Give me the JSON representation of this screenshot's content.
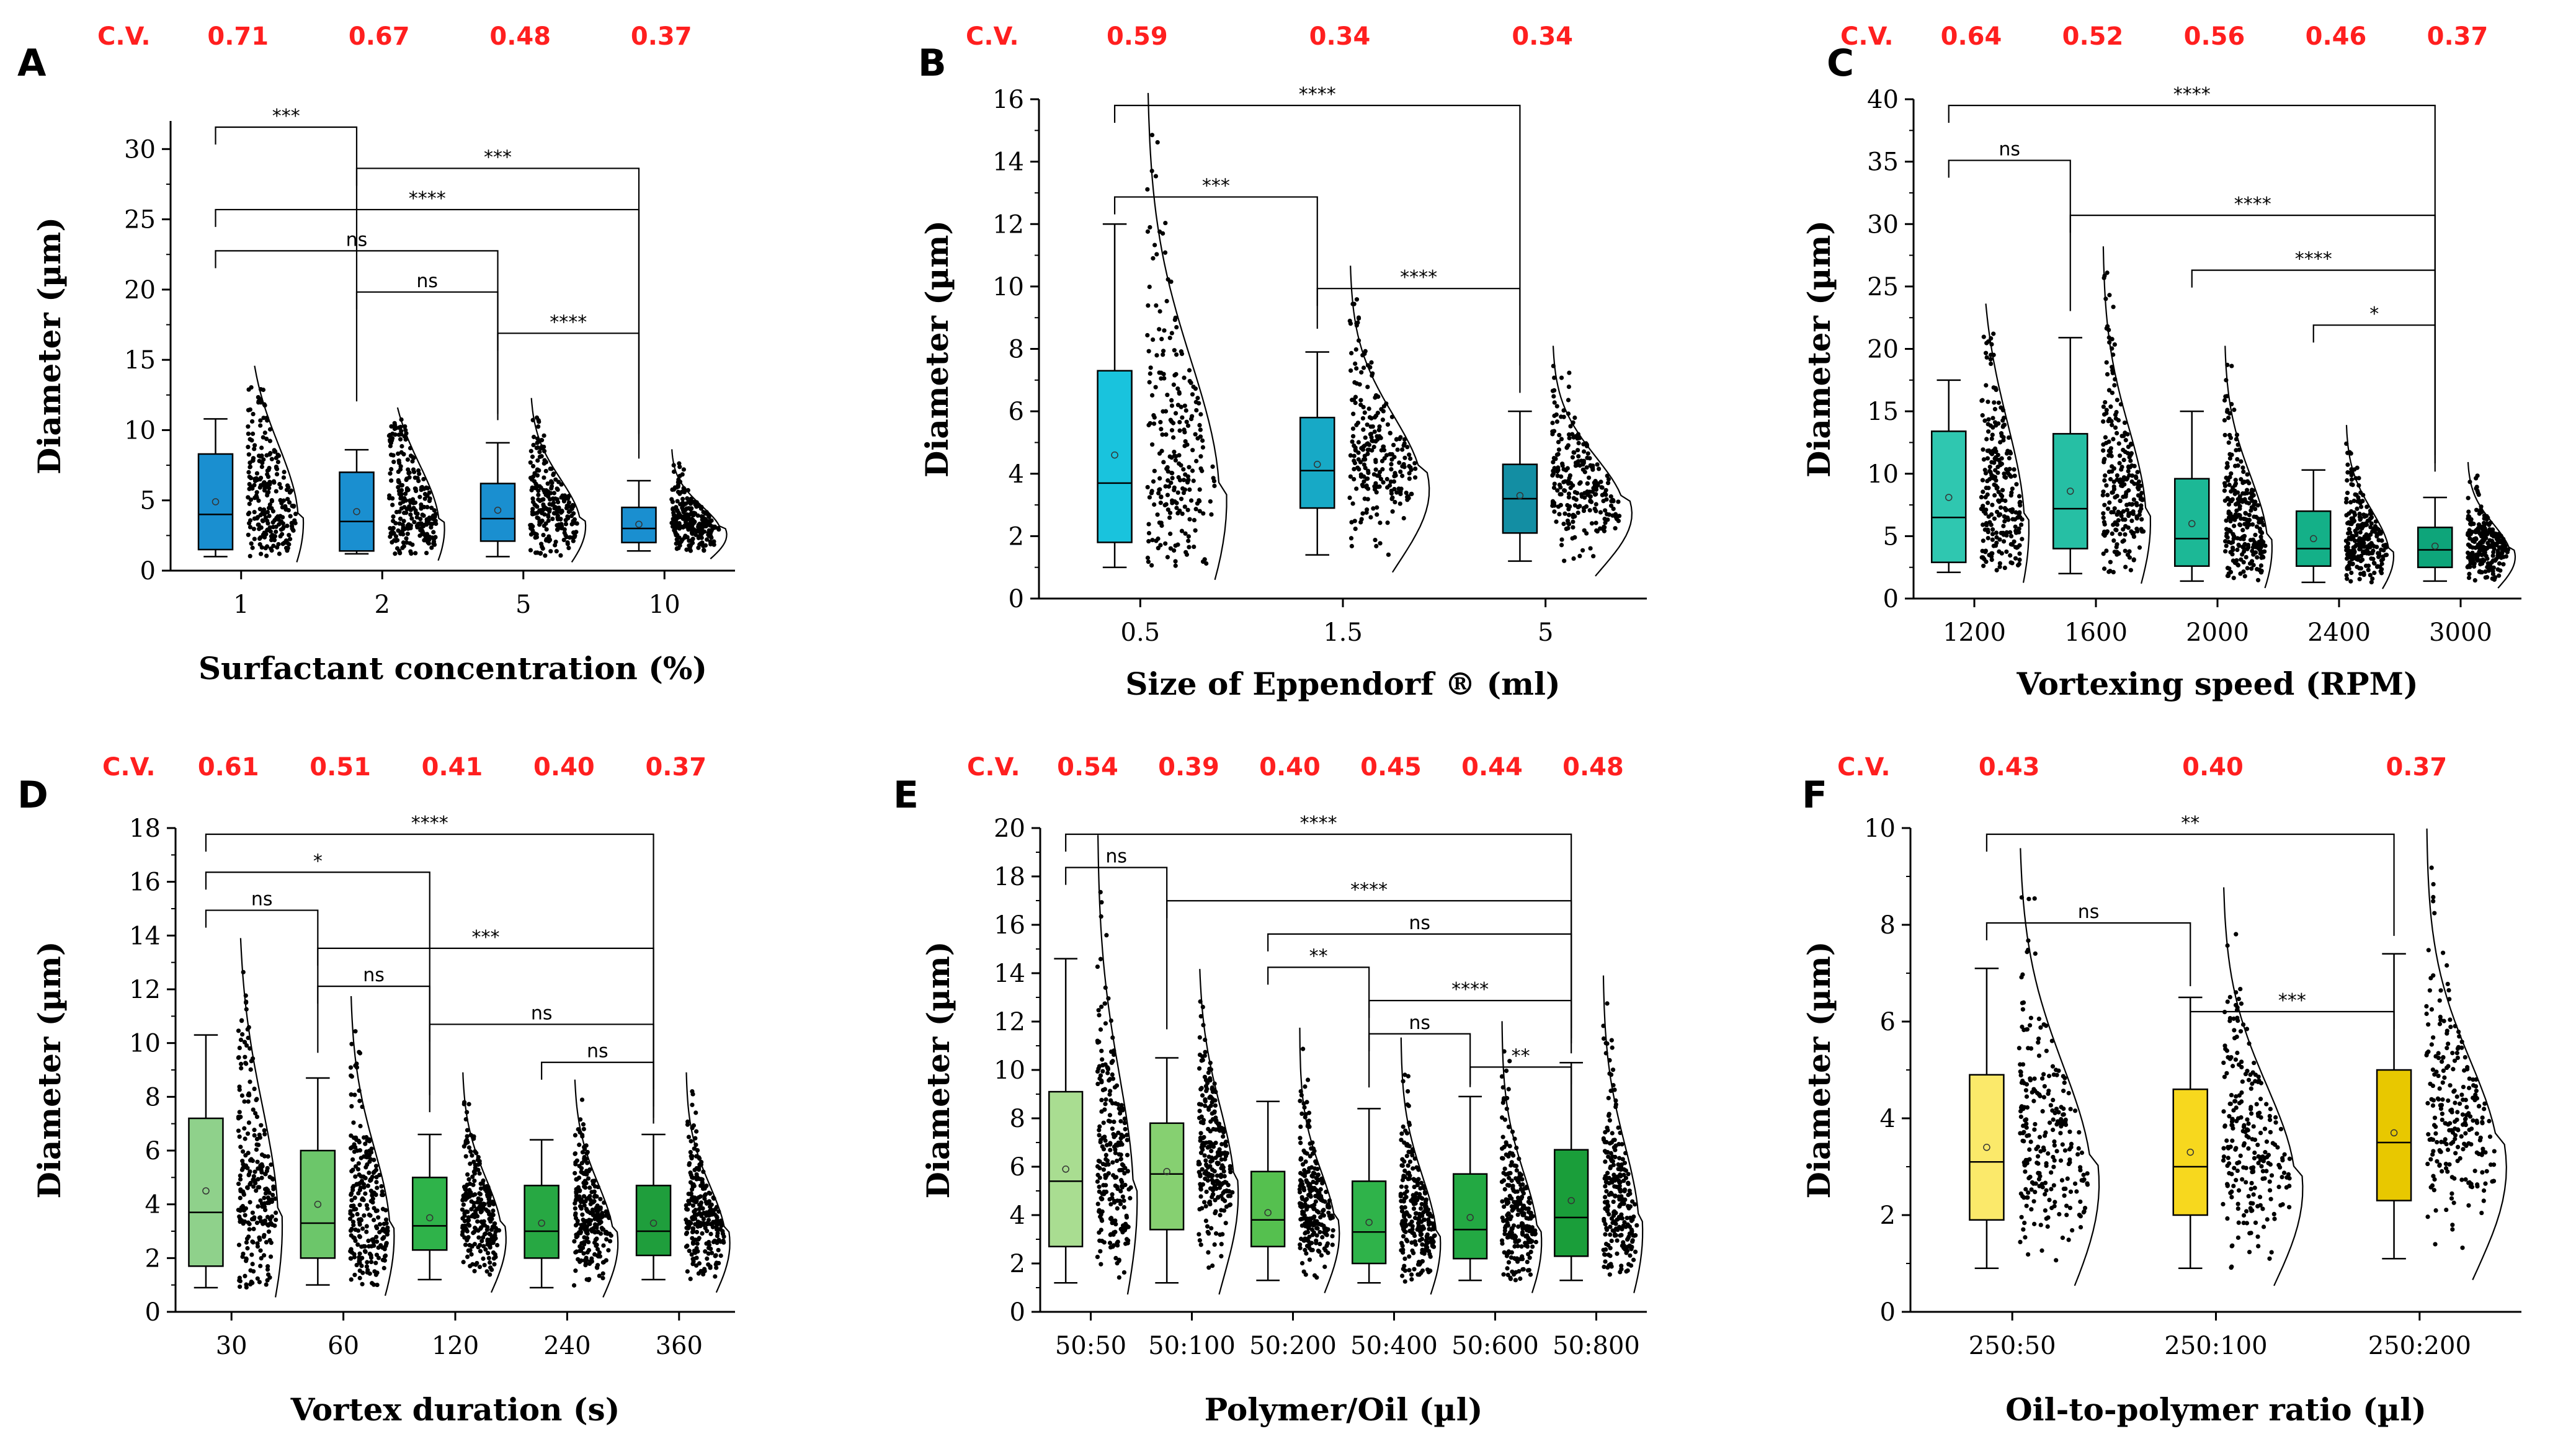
{
  "chart_data": [
    {
      "type": "box",
      "panel": "A",
      "xlabel": "Surfactant concentration (%)",
      "ylabel": "Diameter (µm)",
      "ylim": [
        0,
        32
      ],
      "yticks": [
        0,
        5,
        10,
        15,
        20,
        25,
        30
      ],
      "cv_label": "C.V.",
      "cv": [
        "0.71",
        "0.67",
        "0.48",
        "0.37"
      ],
      "categories": [
        "1",
        "2",
        "5",
        "10"
      ],
      "box_color": "#1a8fd0",
      "colors": [
        "#1a8fd0",
        "#1a8fd0",
        "#1a8fd0",
        "#1a8fd0"
      ],
      "box_stats": [
        {
          "whisker_low": 1.0,
          "q1": 1.5,
          "median": 4.0,
          "mean": 4.9,
          "q3": 8.3,
          "whisker_high": 10.8
        },
        {
          "whisker_low": 1.2,
          "q1": 1.4,
          "median": 3.5,
          "mean": 4.2,
          "q3": 7.0,
          "whisker_high": 8.6
        },
        {
          "whisker_low": 1.0,
          "q1": 2.1,
          "median": 3.7,
          "mean": 4.3,
          "q3": 6.2,
          "whisker_high": 9.1
        },
        {
          "whisker_low": 1.4,
          "q1": 2.0,
          "median": 3.0,
          "mean": 3.3,
          "q3": 4.5,
          "whisker_high": 6.4
        }
      ],
      "significance": [
        {
          "from": 0,
          "to": 1,
          "label": "***"
        },
        {
          "from": 1,
          "to": 3,
          "label": "***"
        },
        {
          "from": 0,
          "to": 3,
          "label": "****"
        },
        {
          "from": 0,
          "to": 2,
          "label": "ns"
        },
        {
          "from": 1,
          "to": 2,
          "label": "ns"
        },
        {
          "from": 2,
          "to": 3,
          "label": "****"
        }
      ]
    },
    {
      "type": "box",
      "panel": "B",
      "xlabel": "Size of Eppendorf ® (ml)",
      "ylabel": "Diameter (µm)",
      "ylim": [
        0,
        16
      ],
      "yticks": [
        0,
        2,
        4,
        6,
        8,
        10,
        12,
        14,
        16
      ],
      "cv_label": "C.V.",
      "cv": [
        "0.59",
        "0.34",
        "0.34"
      ],
      "categories": [
        "0.5",
        "1.5",
        "5"
      ],
      "colors": [
        "#19c3dd",
        "#17a9c6",
        "#138ea3"
      ],
      "box_stats": [
        {
          "whisker_low": 1.0,
          "q1": 1.8,
          "median": 3.7,
          "mean": 4.6,
          "q3": 7.3,
          "whisker_high": 12.0
        },
        {
          "whisker_low": 1.4,
          "q1": 2.9,
          "median": 4.1,
          "mean": 4.3,
          "q3": 5.8,
          "whisker_high": 7.9
        },
        {
          "whisker_low": 1.2,
          "q1": 2.1,
          "median": 3.2,
          "mean": 3.3,
          "q3": 4.3,
          "whisker_high": 6.0
        }
      ],
      "significance": [
        {
          "from": 0,
          "to": 2,
          "label": "****"
        },
        {
          "from": 0,
          "to": 1,
          "label": "***"
        },
        {
          "from": 1,
          "to": 2,
          "label": "****"
        }
      ]
    },
    {
      "type": "box",
      "panel": "C",
      "xlabel": "Vortexing speed (RPM)",
      "ylabel": "Diameter (µm)",
      "ylim": [
        0,
        40
      ],
      "yticks": [
        0,
        5,
        10,
        15,
        20,
        25,
        30,
        35,
        40
      ],
      "cv_label": "C.V.",
      "cv": [
        "0.64",
        "0.52",
        "0.56",
        "0.46",
        "0.37"
      ],
      "categories": [
        "1200",
        "1600",
        "2000",
        "2400",
        "3000"
      ],
      "colors": [
        "#2fc7b0",
        "#26bfa4",
        "#1cb896",
        "#14b088",
        "#0ea57a"
      ],
      "box_stats": [
        {
          "whisker_low": 2.1,
          "q1": 2.9,
          "median": 6.5,
          "mean": 8.1,
          "q3": 13.4,
          "whisker_high": 17.5
        },
        {
          "whisker_low": 2.0,
          "q1": 4.0,
          "median": 7.2,
          "mean": 8.6,
          "q3": 13.2,
          "whisker_high": 20.9
        },
        {
          "whisker_low": 1.4,
          "q1": 2.6,
          "median": 4.8,
          "mean": 6.0,
          "q3": 9.6,
          "whisker_high": 15.0
        },
        {
          "whisker_low": 1.3,
          "q1": 2.6,
          "median": 4.0,
          "mean": 4.8,
          "q3": 7.0,
          "whisker_high": 10.3
        },
        {
          "whisker_low": 1.4,
          "q1": 2.5,
          "median": 3.9,
          "mean": 4.2,
          "q3": 5.7,
          "whisker_high": 8.1
        }
      ],
      "significance": [
        {
          "from": 0,
          "to": 4,
          "label": "****"
        },
        {
          "from": 0,
          "to": 1,
          "label": "ns"
        },
        {
          "from": 1,
          "to": 4,
          "label": "****"
        },
        {
          "from": 2,
          "to": 4,
          "label": "****"
        },
        {
          "from": 3,
          "to": 4,
          "label": "*"
        }
      ]
    },
    {
      "type": "box",
      "panel": "D",
      "xlabel": "Vortex duration (s)",
      "ylabel": "Diameter (µm)",
      "ylim": [
        0,
        18
      ],
      "yticks": [
        0,
        2,
        4,
        6,
        8,
        10,
        12,
        14,
        16,
        18
      ],
      "cv_label": "C.V.",
      "cv": [
        "0.61",
        "0.51",
        "0.41",
        "0.40",
        "0.37"
      ],
      "categories": [
        "30",
        "60",
        "120",
        "240",
        "360"
      ],
      "colors": [
        "#8fd18b",
        "#6cc66a",
        "#2fb34a",
        "#27a843",
        "#1f9e3c"
      ],
      "box_stats": [
        {
          "whisker_low": 0.9,
          "q1": 1.7,
          "median": 3.7,
          "mean": 4.5,
          "q3": 7.2,
          "whisker_high": 10.3
        },
        {
          "whisker_low": 1.0,
          "q1": 2.0,
          "median": 3.3,
          "mean": 4.0,
          "q3": 6.0,
          "whisker_high": 8.7
        },
        {
          "whisker_low": 1.2,
          "q1": 2.3,
          "median": 3.2,
          "mean": 3.5,
          "q3": 5.0,
          "whisker_high": 6.6
        },
        {
          "whisker_low": 0.9,
          "q1": 2.0,
          "median": 3.0,
          "mean": 3.3,
          "q3": 4.7,
          "whisker_high": 6.4
        },
        {
          "whisker_low": 1.2,
          "q1": 2.1,
          "median": 3.0,
          "mean": 3.3,
          "q3": 4.7,
          "whisker_high": 6.6
        }
      ],
      "significance": [
        {
          "from": 0,
          "to": 4,
          "label": "****"
        },
        {
          "from": 0,
          "to": 2,
          "label": "*"
        },
        {
          "from": 0,
          "to": 1,
          "label": "ns"
        },
        {
          "from": 1,
          "to": 4,
          "label": "***"
        },
        {
          "from": 1,
          "to": 2,
          "label": "ns"
        },
        {
          "from": 2,
          "to": 4,
          "label": "ns"
        },
        {
          "from": 3,
          "to": 4,
          "label": "ns"
        }
      ]
    },
    {
      "type": "box",
      "panel": "E",
      "xlabel": "Polymer/Oil (µl)",
      "ylabel": "Diameter (µm)",
      "ylim": [
        0,
        20
      ],
      "yticks": [
        0,
        2,
        4,
        6,
        8,
        10,
        12,
        14,
        16,
        18,
        20
      ],
      "cv_label": "C.V.",
      "cv": [
        "0.54",
        "0.39",
        "0.40",
        "0.45",
        "0.44",
        "0.48"
      ],
      "categories": [
        "50:50",
        "50:100",
        "50:200",
        "50:400",
        "50:600",
        "50:800"
      ],
      "colors": [
        "#a9dd91",
        "#86d071",
        "#55c04f",
        "#2fb34a",
        "#23a943",
        "#1a9e3a"
      ],
      "box_stats": [
        {
          "whisker_low": 1.2,
          "q1": 2.7,
          "median": 5.4,
          "mean": 5.9,
          "q3": 9.1,
          "whisker_high": 14.6
        },
        {
          "whisker_low": 1.2,
          "q1": 3.4,
          "median": 5.7,
          "mean": 5.8,
          "q3": 7.8,
          "whisker_high": 10.5
        },
        {
          "whisker_low": 1.3,
          "q1": 2.7,
          "median": 3.8,
          "mean": 4.1,
          "q3": 5.8,
          "whisker_high": 8.7
        },
        {
          "whisker_low": 1.2,
          "q1": 2.0,
          "median": 3.3,
          "mean": 3.7,
          "q3": 5.4,
          "whisker_high": 8.4
        },
        {
          "whisker_low": 1.3,
          "q1": 2.2,
          "median": 3.4,
          "mean": 3.9,
          "q3": 5.7,
          "whisker_high": 8.9
        },
        {
          "whisker_low": 1.3,
          "q1": 2.3,
          "median": 3.9,
          "mean": 4.6,
          "q3": 6.7,
          "whisker_high": 10.3
        }
      ],
      "significance": [
        {
          "from": 0,
          "to": 5,
          "label": "****"
        },
        {
          "from": 0,
          "to": 1,
          "label": "ns"
        },
        {
          "from": 1,
          "to": 5,
          "label": "****"
        },
        {
          "from": 2,
          "to": 5,
          "label": "ns"
        },
        {
          "from": 2,
          "to": 3,
          "label": "**"
        },
        {
          "from": 3,
          "to": 5,
          "label": "****"
        },
        {
          "from": 3,
          "to": 4,
          "label": "ns"
        },
        {
          "from": 4,
          "to": 5,
          "label": "**"
        }
      ]
    },
    {
      "type": "box",
      "panel": "F",
      "xlabel": "Oil-to-polymer ratio (µl)",
      "ylabel": "Diameter (µm)",
      "ylim": [
        0,
        10
      ],
      "yticks": [
        0,
        2,
        4,
        6,
        8,
        10
      ],
      "cv_label": "C.V.",
      "cv": [
        "0.43",
        "0.40",
        "0.37"
      ],
      "categories": [
        "250:50",
        "250:100",
        "250:200"
      ],
      "colors": [
        "#fbe96a",
        "#f7d81e",
        "#e8c800"
      ],
      "box_stats": [
        {
          "whisker_low": 0.9,
          "q1": 1.9,
          "median": 3.1,
          "mean": 3.4,
          "q3": 4.9,
          "whisker_high": 7.1
        },
        {
          "whisker_low": 0.9,
          "q1": 2.0,
          "median": 3.0,
          "mean": 3.3,
          "q3": 4.6,
          "whisker_high": 6.5
        },
        {
          "whisker_low": 1.1,
          "q1": 2.3,
          "median": 3.5,
          "mean": 3.7,
          "q3": 5.0,
          "whisker_high": 7.4
        }
      ],
      "significance": [
        {
          "from": 0,
          "to": 2,
          "label": "**"
        },
        {
          "from": 0,
          "to": 1,
          "label": "ns"
        },
        {
          "from": 1,
          "to": 2,
          "label": "***"
        }
      ]
    }
  ]
}
